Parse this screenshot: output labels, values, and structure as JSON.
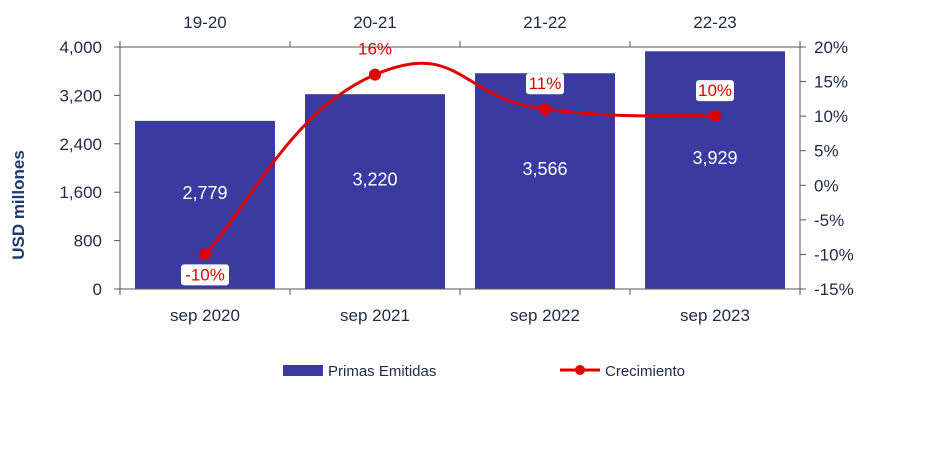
{
  "chart_data": {
    "type": "bar",
    "categories": [
      "sep 2020",
      "sep 2021",
      "sep 2022",
      "sep 2023"
    ],
    "top_labels": [
      "19-20",
      "20-21",
      "21-22",
      "22-23"
    ],
    "series": [
      {
        "name": "Primas Emitidas",
        "axis": "left",
        "values": [
          2779,
          3220,
          3566,
          3929
        ],
        "labels": [
          "2,779",
          "3,220",
          "3,566",
          "3,929"
        ],
        "color": "#3a3aa0"
      },
      {
        "name": "Crecimiento",
        "axis": "right",
        "type": "line",
        "values": [
          -10,
          16,
          11,
          10
        ],
        "labels": [
          "-10%",
          "16%",
          "11%",
          "10%"
        ],
        "color": "#e00000"
      }
    ],
    "ylabel": "USD millones",
    "ylim": [
      0,
      4000
    ],
    "yticks": [
      "0",
      "800",
      "1,600",
      "2,400",
      "3,200",
      "4,000"
    ],
    "y2lim": [
      -15,
      20
    ],
    "y2ticks": [
      "-15%",
      "-10%",
      "-5%",
      "0%",
      "5%",
      "10%",
      "15%",
      "20%"
    ],
    "legend_position": "bottom"
  }
}
